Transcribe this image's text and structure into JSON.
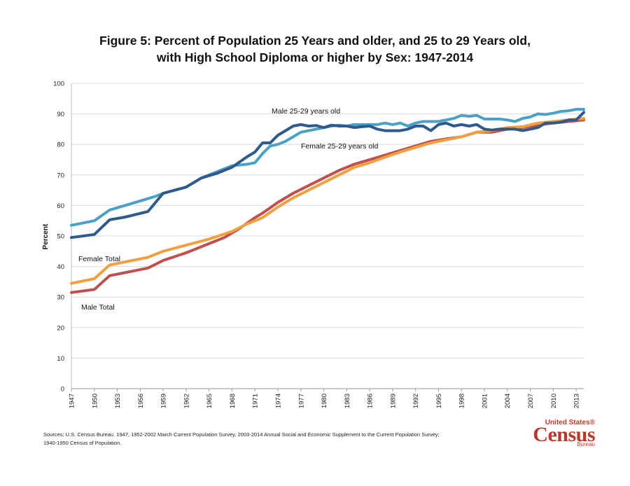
{
  "chart_data": {
    "type": "line",
    "title_line1": "Figure 5: Percent of Population 25 Years and older, and 25 to 29 Years old,",
    "title_line2": "with High School Diploma or higher by Sex: 1947-2014",
    "ylabel": "Percent",
    "xlabel": "",
    "ylim": [
      0,
      100
    ],
    "xlim": [
      1947,
      2014
    ],
    "y_ticks": [
      "0",
      "10",
      "20",
      "30",
      "40",
      "50",
      "60",
      "70",
      "80",
      "90",
      "100"
    ],
    "x_ticks": [
      "1947",
      "1950",
      "1953",
      "1956",
      "1959",
      "1962",
      "1965",
      "1968",
      "1971",
      "1974",
      "1977",
      "1980",
      "1983",
      "1986",
      "1989",
      "1992",
      "1995",
      "1998",
      "2001",
      "2004",
      "2007",
      "2010",
      "2013"
    ],
    "grid": "horizontal",
    "series": [
      {
        "name": "Male 25-29 years old",
        "label": "Male 25-29 years old",
        "color": "#2f5b8c",
        "points": [
          [
            1947,
            49.5
          ],
          [
            1950,
            50.5
          ],
          [
            1952,
            55.3
          ],
          [
            1954,
            56.2
          ],
          [
            1957,
            58
          ],
          [
            1959,
            64
          ],
          [
            1962,
            66
          ],
          [
            1964,
            69
          ],
          [
            1966,
            70.5
          ],
          [
            1968,
            72.5
          ],
          [
            1970,
            76
          ],
          [
            1971,
            77.5
          ],
          [
            1972,
            80.5
          ],
          [
            1973,
            80.5
          ],
          [
            1974,
            83
          ],
          [
            1975,
            84.5
          ],
          [
            1976,
            86
          ],
          [
            1977,
            86.5
          ],
          [
            1978,
            86
          ],
          [
            1979,
            86.2
          ],
          [
            1980,
            85.5
          ],
          [
            1981,
            86.3
          ],
          [
            1982,
            86
          ],
          [
            1983,
            86
          ],
          [
            1984,
            85.5
          ],
          [
            1985,
            85.8
          ],
          [
            1986,
            86
          ],
          [
            1987,
            85
          ],
          [
            1988,
            84.5
          ],
          [
            1989,
            84.5
          ],
          [
            1990,
            84.5
          ],
          [
            1991,
            85
          ],
          [
            1992,
            86
          ],
          [
            1993,
            86
          ],
          [
            1994,
            84.5
          ],
          [
            1995,
            86.5
          ],
          [
            1996,
            87
          ],
          [
            1997,
            86
          ],
          [
            1998,
            86.5
          ],
          [
            1999,
            86
          ],
          [
            2000,
            86.5
          ],
          [
            2001,
            85
          ],
          [
            2002,
            84.7
          ],
          [
            2003,
            85
          ],
          [
            2004,
            85
          ],
          [
            2005,
            85
          ],
          [
            2006,
            84.5
          ],
          [
            2007,
            85
          ],
          [
            2008,
            85.5
          ],
          [
            2009,
            87
          ],
          [
            2010,
            87
          ],
          [
            2011,
            87.3
          ],
          [
            2012,
            88
          ],
          [
            2013,
            88
          ],
          [
            2014,
            90.5
          ]
        ]
      },
      {
        "name": "Female 25-29 years old",
        "label": "Female 25-29 years old",
        "color": "#4aa1c5",
        "points": [
          [
            1947,
            53.5
          ],
          [
            1950,
            55
          ],
          [
            1952,
            58.5
          ],
          [
            1954,
            60
          ],
          [
            1956,
            61.5
          ],
          [
            1958,
            63
          ],
          [
            1959,
            64
          ],
          [
            1962,
            66
          ],
          [
            1964,
            69
          ],
          [
            1966,
            71
          ],
          [
            1968,
            73
          ],
          [
            1970,
            73.5
          ],
          [
            1971,
            74
          ],
          [
            1972,
            77
          ],
          [
            1973,
            79.5
          ],
          [
            1974,
            80
          ],
          [
            1975,
            81
          ],
          [
            1976,
            82.5
          ],
          [
            1977,
            84
          ],
          [
            1978,
            84.5
          ],
          [
            1979,
            85
          ],
          [
            1980,
            85.5
          ],
          [
            1981,
            86
          ],
          [
            1982,
            86.3
          ],
          [
            1983,
            86
          ],
          [
            1984,
            86.5
          ],
          [
            1985,
            86.5
          ],
          [
            1986,
            86.5
          ],
          [
            1987,
            86.5
          ],
          [
            1988,
            87
          ],
          [
            1989,
            86.5
          ],
          [
            1990,
            87
          ],
          [
            1991,
            86
          ],
          [
            1992,
            87
          ],
          [
            1993,
            87.5
          ],
          [
            1994,
            87.5
          ],
          [
            1995,
            87.5
          ],
          [
            1996,
            88
          ],
          [
            1997,
            88.5
          ],
          [
            1998,
            89.5
          ],
          [
            1999,
            89.2
          ],
          [
            2000,
            89.5
          ],
          [
            2001,
            88.3
          ],
          [
            2002,
            88.3
          ],
          [
            2003,
            88.3
          ],
          [
            2004,
            88
          ],
          [
            2005,
            87.5
          ],
          [
            2006,
            88.5
          ],
          [
            2007,
            89
          ],
          [
            2008,
            90
          ],
          [
            2009,
            89.8
          ],
          [
            2010,
            90.2
          ],
          [
            2011,
            90.8
          ],
          [
            2012,
            91
          ],
          [
            2013,
            91.5
          ],
          [
            2014,
            91.5
          ]
        ]
      },
      {
        "name": "Female Total",
        "label": "Female Total",
        "color": "#f0a040",
        "points": [
          [
            1947,
            34.5
          ],
          [
            1950,
            36
          ],
          [
            1952,
            40.5
          ],
          [
            1957,
            43
          ],
          [
            1959,
            45
          ],
          [
            1962,
            47
          ],
          [
            1965,
            49
          ],
          [
            1968,
            51.5
          ],
          [
            1970,
            54
          ],
          [
            1972,
            56
          ],
          [
            1974,
            59.5
          ],
          [
            1976,
            62.5
          ],
          [
            1978,
            65
          ],
          [
            1980,
            67.5
          ],
          [
            1982,
            70
          ],
          [
            1984,
            72.5
          ],
          [
            1986,
            74
          ],
          [
            1988,
            75.8
          ],
          [
            1990,
            77.5
          ],
          [
            1992,
            79
          ],
          [
            1994,
            80.5
          ],
          [
            1996,
            81.5
          ],
          [
            1998,
            82.5
          ],
          [
            2000,
            84
          ],
          [
            2002,
            84.5
          ],
          [
            2004,
            85.5
          ],
          [
            2006,
            85.8
          ],
          [
            2008,
            87
          ],
          [
            2010,
            87.5
          ],
          [
            2012,
            88
          ],
          [
            2014,
            88.5
          ]
        ]
      },
      {
        "name": "Male Total",
        "label": "Male Total",
        "color": "#c0504d",
        "points": [
          [
            1947,
            31.5
          ],
          [
            1950,
            32.5
          ],
          [
            1952,
            37
          ],
          [
            1954,
            38
          ],
          [
            1957,
            39.5
          ],
          [
            1959,
            42
          ],
          [
            1962,
            44.5
          ],
          [
            1965,
            47.5
          ],
          [
            1967,
            49.5
          ],
          [
            1969,
            52.5
          ],
          [
            1971,
            56
          ],
          [
            1972,
            57.5
          ],
          [
            1974,
            61
          ],
          [
            1976,
            64
          ],
          [
            1978,
            66.5
          ],
          [
            1980,
            69
          ],
          [
            1982,
            71.5
          ],
          [
            1984,
            73.5
          ],
          [
            1986,
            75
          ],
          [
            1988,
            76.5
          ],
          [
            1990,
            78
          ],
          [
            1992,
            79.5
          ],
          [
            1994,
            81
          ],
          [
            1996,
            81.8
          ],
          [
            1998,
            82.5
          ],
          [
            2000,
            84
          ],
          [
            2002,
            84
          ],
          [
            2004,
            85
          ],
          [
            2006,
            85.5
          ],
          [
            2008,
            86.3
          ],
          [
            2010,
            87
          ],
          [
            2012,
            87.5
          ],
          [
            2014,
            88
          ]
        ]
      }
    ]
  },
  "source_line1": "Sources:  U.S. Census Bureau. 1947, 1952-2002 March Current Population Survey, 2003-2014 Annual Social and Economic Supplement to the Current Population Survey;",
  "source_line2": "1940-1950 Census of Population.",
  "logo": {
    "top_text": "United States®",
    "main_text": "Census",
    "bottom_text": "Bureau"
  }
}
